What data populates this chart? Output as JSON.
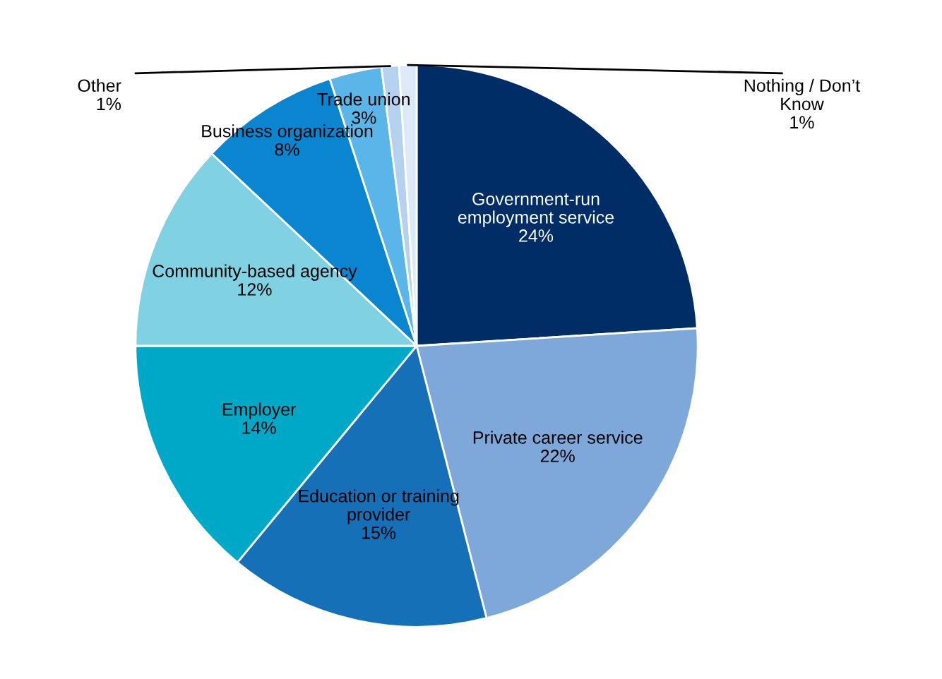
{
  "chart_data": {
    "type": "pie",
    "categories": [
      "Government-run\nemployment service",
      "Private career service",
      "Education or training\nprovider",
      "Employer",
      "Community-based agency",
      "Business organization",
      "Trade union",
      "Other",
      "Nothing / Don’t\nKnow"
    ],
    "values": [
      24,
      22,
      15,
      14,
      12,
      8,
      3,
      1,
      1
    ],
    "value_labels": [
      "24%",
      "22%",
      "15%",
      "14%",
      "12%",
      "8%",
      "3%",
      "1%",
      "1%"
    ],
    "colors": [
      "#002d66",
      "#7fa8da",
      "#1670b8",
      "#00a8c8",
      "#80d2e2",
      "#0a86d0",
      "#5ab6e8",
      "#b4d2f0",
      "#dce9f6"
    ],
    "legend": false
  }
}
